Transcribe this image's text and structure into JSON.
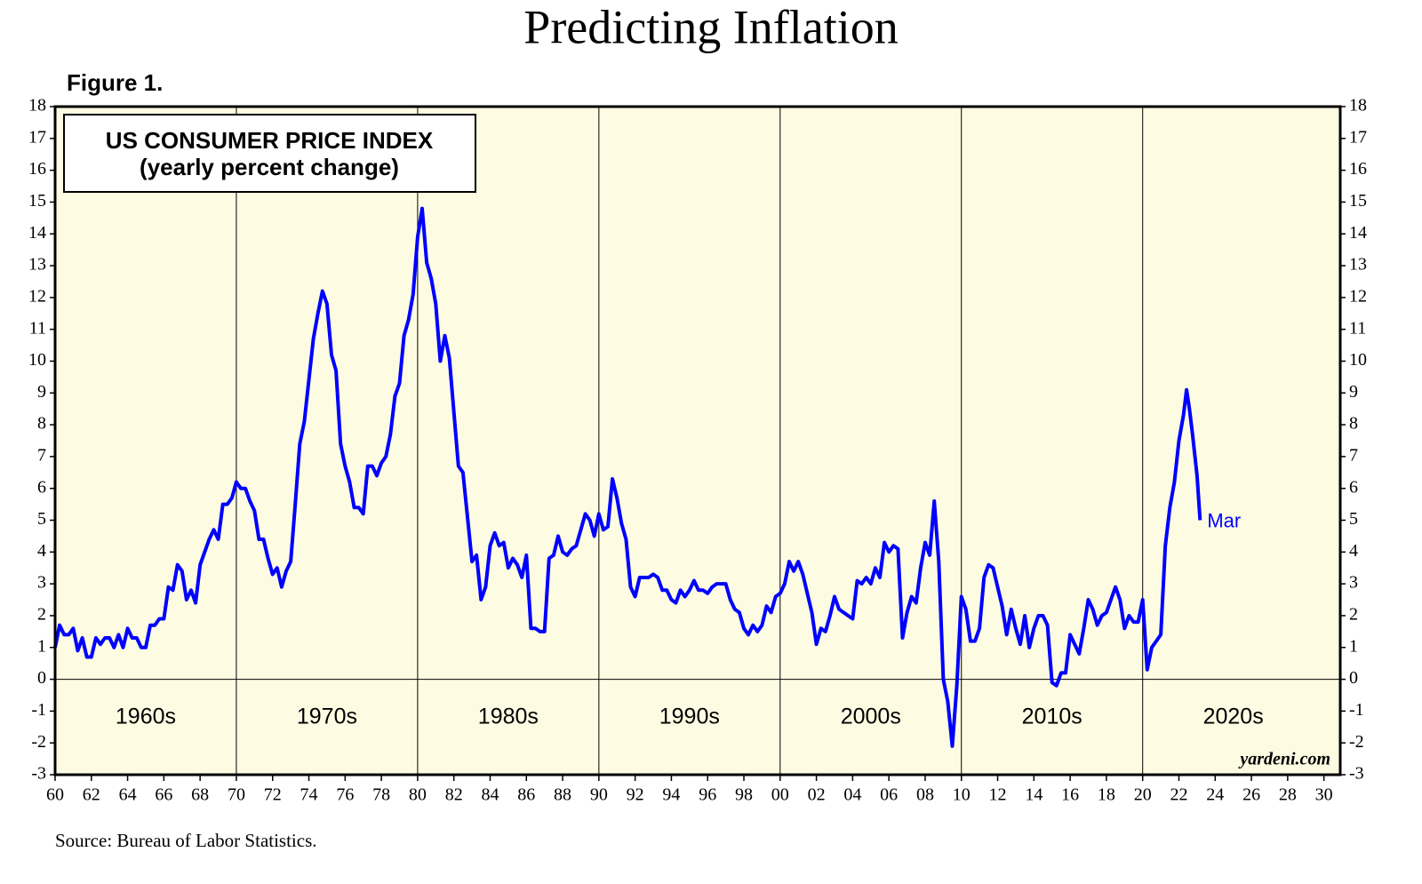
{
  "chart_data": {
    "type": "line",
    "title": "Predicting Inflation",
    "figure_label": "Figure 1.",
    "box_lines": [
      "US CONSUMER PRICE INDEX",
      "(yearly percent change)"
    ],
    "source": "Source: Bureau of Labor Statistics.",
    "watermark": "yardeni.com",
    "end_label": "Mar",
    "color": "#0000ff",
    "x": [
      1960,
      1960.25,
      1960.5,
      1960.75,
      1961,
      1961.25,
      1961.5,
      1961.75,
      1962,
      1962.25,
      1962.5,
      1962.75,
      1963,
      1963.25,
      1963.5,
      1963.75,
      1964,
      1964.25,
      1964.5,
      1964.75,
      1965,
      1965.25,
      1965.5,
      1965.75,
      1966,
      1966.25,
      1966.5,
      1966.75,
      1967,
      1967.25,
      1967.5,
      1967.75,
      1968,
      1968.25,
      1968.5,
      1968.75,
      1969,
      1969.25,
      1969.5,
      1969.75,
      1970,
      1970.25,
      1970.5,
      1970.75,
      1971,
      1971.25,
      1971.5,
      1971.75,
      1972,
      1972.25,
      1972.5,
      1972.75,
      1973,
      1973.25,
      1973.5,
      1973.75,
      1974,
      1974.25,
      1974.5,
      1974.75,
      1975,
      1975.25,
      1975.5,
      1975.75,
      1976,
      1976.25,
      1976.5,
      1976.75,
      1977,
      1977.25,
      1977.5,
      1977.75,
      1978,
      1978.25,
      1978.5,
      1978.75,
      1979,
      1979.25,
      1979.5,
      1979.75,
      1980,
      1980.25,
      1980.5,
      1980.75,
      1981,
      1981.25,
      1981.5,
      1981.75,
      1982,
      1982.25,
      1982.5,
      1982.75,
      1983,
      1983.25,
      1983.5,
      1983.75,
      1984,
      1984.25,
      1984.5,
      1984.75,
      1985,
      1985.25,
      1985.5,
      1985.75,
      1986,
      1986.25,
      1986.5,
      1986.75,
      1987,
      1987.25,
      1987.5,
      1987.75,
      1988,
      1988.25,
      1988.5,
      1988.75,
      1989,
      1989.25,
      1989.5,
      1989.75,
      1990,
      1990.25,
      1990.5,
      1990.75,
      1991,
      1991.25,
      1991.5,
      1991.75,
      1992,
      1992.25,
      1992.5,
      1992.75,
      1993,
      1993.25,
      1993.5,
      1993.75,
      1994,
      1994.25,
      1994.5,
      1994.75,
      1995,
      1995.25,
      1995.5,
      1995.75,
      1996,
      1996.25,
      1996.5,
      1996.75,
      1997,
      1997.25,
      1997.5,
      1997.75,
      1998,
      1998.25,
      1998.5,
      1998.75,
      1999,
      1999.25,
      1999.5,
      1999.75,
      2000,
      2000.25,
      2000.5,
      2000.75,
      2001,
      2001.25,
      2001.5,
      2001.75,
      2002,
      2002.25,
      2002.5,
      2002.75,
      2003,
      2003.25,
      2003.5,
      2003.75,
      2004,
      2004.25,
      2004.5,
      2004.75,
      2005,
      2005.25,
      2005.5,
      2005.75,
      2006,
      2006.25,
      2006.5,
      2006.75,
      2007,
      2007.25,
      2007.5,
      2007.75,
      2008,
      2008.25,
      2008.5,
      2008.75,
      2009,
      2009.25,
      2009.5,
      2009.75,
      2010,
      2010.25,
      2010.5,
      2010.75,
      2011,
      2011.25,
      2011.5,
      2011.75,
      2012,
      2012.25,
      2012.5,
      2012.75,
      2013,
      2013.25,
      2013.5,
      2013.75,
      2014,
      2014.25,
      2014.5,
      2014.75,
      2015,
      2015.25,
      2015.5,
      2015.75,
      2016,
      2016.25,
      2016.5,
      2016.75,
      2017,
      2017.25,
      2017.5,
      2017.75,
      2018,
      2018.25,
      2018.5,
      2018.75,
      2019,
      2019.25,
      2019.5,
      2019.75,
      2020,
      2020.25,
      2020.5,
      2020.75,
      2021,
      2021.25,
      2021.5,
      2021.75,
      2022,
      2022.25,
      2022.42,
      2022.58,
      2022.75,
      2023,
      2023.17
    ],
    "values": [
      1.0,
      1.7,
      1.4,
      1.4,
      1.6,
      0.9,
      1.3,
      0.7,
      0.7,
      1.3,
      1.1,
      1.3,
      1.3,
      1.0,
      1.4,
      1.0,
      1.6,
      1.3,
      1.3,
      1.0,
      1.0,
      1.7,
      1.7,
      1.9,
      1.9,
      2.9,
      2.8,
      3.6,
      3.4,
      2.5,
      2.8,
      2.4,
      3.6,
      4.0,
      4.4,
      4.7,
      4.4,
      5.5,
      5.5,
      5.7,
      6.2,
      6.0,
      6.0,
      5.6,
      5.3,
      4.4,
      4.4,
      3.8,
      3.3,
      3.5,
      2.9,
      3.4,
      3.7,
      5.5,
      7.4,
      8.1,
      9.4,
      10.7,
      11.5,
      12.2,
      11.8,
      10.2,
      9.7,
      7.4,
      6.7,
      6.2,
      5.4,
      5.4,
      5.2,
      6.7,
      6.7,
      6.4,
      6.8,
      7.0,
      7.7,
      8.9,
      9.3,
      10.8,
      11.3,
      12.1,
      13.9,
      14.8,
      13.1,
      12.6,
      11.8,
      10.0,
      10.8,
      10.1,
      8.4,
      6.7,
      6.5,
      5.1,
      3.7,
      3.9,
      2.5,
      2.9,
      4.2,
      4.6,
      4.2,
      4.3,
      3.5,
      3.8,
      3.6,
      3.2,
      3.9,
      1.6,
      1.6,
      1.5,
      1.5,
      3.8,
      3.9,
      4.5,
      4.0,
      3.9,
      4.1,
      4.2,
      4.7,
      5.2,
      5.0,
      4.5,
      5.2,
      4.7,
      4.8,
      6.3,
      5.7,
      4.9,
      4.4,
      2.9,
      2.6,
      3.2,
      3.2,
      3.2,
      3.3,
      3.2,
      2.8,
      2.8,
      2.5,
      2.4,
      2.8,
      2.6,
      2.8,
      3.1,
      2.8,
      2.8,
      2.7,
      2.9,
      3.0,
      3.0,
      3.0,
      2.5,
      2.2,
      2.1,
      1.6,
      1.4,
      1.7,
      1.5,
      1.7,
      2.3,
      2.1,
      2.6,
      2.7,
      3.0,
      3.7,
      3.4,
      3.7,
      3.3,
      2.7,
      2.1,
      1.1,
      1.6,
      1.5,
      2.0,
      2.6,
      2.2,
      2.1,
      2.0,
      1.9,
      3.1,
      3.0,
      3.2,
      3.0,
      3.5,
      3.2,
      4.3,
      4.0,
      4.2,
      4.1,
      1.3,
      2.1,
      2.6,
      2.4,
      3.5,
      4.3,
      3.9,
      5.6,
      3.7,
      0.0,
      -0.7,
      -2.1,
      -0.2,
      2.6,
      2.2,
      1.2,
      1.2,
      1.6,
      3.2,
      3.6,
      3.5,
      2.9,
      2.3,
      1.4,
      2.2,
      1.6,
      1.1,
      2.0,
      1.0,
      1.6,
      2.0,
      2.0,
      1.7,
      -0.1,
      -0.2,
      0.2,
      0.2,
      1.4,
      1.1,
      0.8,
      1.6,
      2.5,
      2.2,
      1.7,
      2.0,
      2.1,
      2.5,
      2.9,
      2.5,
      1.6,
      2.0,
      1.8,
      1.8,
      2.5,
      0.3,
      1.0,
      1.2,
      1.4,
      4.2,
      5.4,
      6.2,
      7.5,
      8.3,
      9.1,
      8.5,
      7.7,
      6.4,
      5.0
    ],
    "xlim": [
      1960,
      2030.9
    ],
    "xticks": [
      {
        "value": 1960,
        "label": "60"
      },
      {
        "value": 1962,
        "label": "62"
      },
      {
        "value": 1964,
        "label": "64"
      },
      {
        "value": 1966,
        "label": "66"
      },
      {
        "value": 1968,
        "label": "68"
      },
      {
        "value": 1970,
        "label": "70"
      },
      {
        "value": 1972,
        "label": "72"
      },
      {
        "value": 1974,
        "label": "74"
      },
      {
        "value": 1976,
        "label": "76"
      },
      {
        "value": 1978,
        "label": "78"
      },
      {
        "value": 1980,
        "label": "80"
      },
      {
        "value": 1982,
        "label": "82"
      },
      {
        "value": 1984,
        "label": "84"
      },
      {
        "value": 1986,
        "label": "86"
      },
      {
        "value": 1988,
        "label": "88"
      },
      {
        "value": 1990,
        "label": "90"
      },
      {
        "value": 1992,
        "label": "92"
      },
      {
        "value": 1994,
        "label": "94"
      },
      {
        "value": 1996,
        "label": "96"
      },
      {
        "value": 1998,
        "label": "98"
      },
      {
        "value": 2000,
        "label": "00"
      },
      {
        "value": 2002,
        "label": "02"
      },
      {
        "value": 2004,
        "label": "04"
      },
      {
        "value": 2006,
        "label": "06"
      },
      {
        "value": 2008,
        "label": "08"
      },
      {
        "value": 2010,
        "label": "10"
      },
      {
        "value": 2012,
        "label": "12"
      },
      {
        "value": 2014,
        "label": "14"
      },
      {
        "value": 2016,
        "label": "16"
      },
      {
        "value": 2018,
        "label": "18"
      },
      {
        "value": 2020,
        "label": "20"
      },
      {
        "value": 2022,
        "label": "22"
      },
      {
        "value": 2024,
        "label": "24"
      },
      {
        "value": 2026,
        "label": "26"
      },
      {
        "value": 2028,
        "label": "28"
      },
      {
        "value": 2030,
        "label": "30"
      }
    ],
    "ylim": [
      -3,
      18
    ],
    "yticks": [
      -3,
      -2,
      -1,
      0,
      1,
      2,
      3,
      4,
      5,
      6,
      7,
      8,
      9,
      10,
      11,
      12,
      13,
      14,
      15,
      16,
      17,
      18
    ],
    "decade_lines": [
      1970,
      1980,
      1990,
      2000,
      2010,
      2020
    ],
    "decade_labels": [
      "1960s",
      "1970s",
      "1980s",
      "1990s",
      "2000s",
      "2010s",
      "2020s"
    ]
  }
}
